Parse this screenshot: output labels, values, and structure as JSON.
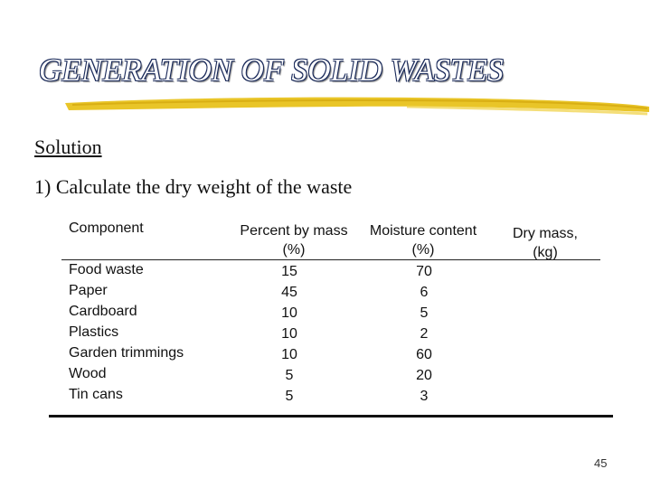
{
  "slide": {
    "title": "GENERATION OF SOLID WASTES",
    "solution_label": "Solution",
    "step": "1) Calculate the dry weight of the waste",
    "page_number": "45"
  },
  "table": {
    "headers": {
      "component": "Component",
      "percent_line1": "Percent by mass",
      "percent_line2": "(%)",
      "moisture_line1": "Moisture content",
      "moisture_line2": "(%)",
      "dry_line1": "Dry mass,",
      "dry_line2": "(kg)"
    },
    "rows": [
      {
        "component": "Food waste",
        "percent": "15",
        "moisture": "70"
      },
      {
        "component": "Paper",
        "percent": "45",
        "moisture": "6"
      },
      {
        "component": "Cardboard",
        "percent": "10",
        "moisture": "5"
      },
      {
        "component": "Plastics",
        "percent": "10",
        "moisture": "2"
      },
      {
        "component": "Garden trimmings",
        "percent": "10",
        "moisture": "60"
      },
      {
        "component": "Wood",
        "percent": "5",
        "moisture": "20"
      },
      {
        "component": "Tin cans",
        "percent": "5",
        "moisture": "3"
      }
    ]
  },
  "colors": {
    "underline": "#e8c21c",
    "title_outline": "#1a2a5a"
  }
}
